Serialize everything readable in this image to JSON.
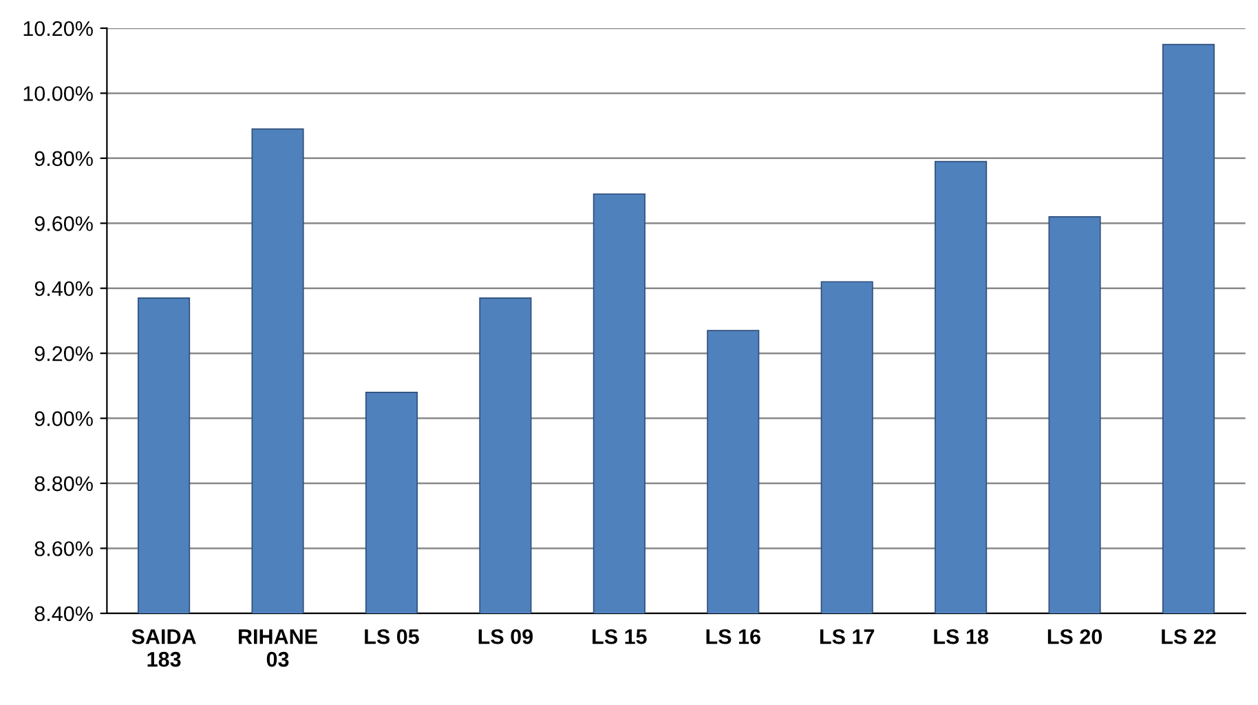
{
  "chart_data": {
    "type": "bar",
    "categories": [
      "SAIDA\n183",
      "RIHANE\n03",
      "LS 05",
      "LS 09",
      "LS 15",
      "LS 16",
      "LS 17",
      "LS 18",
      "LS 20",
      "LS 22"
    ],
    "values": [
      9.37,
      9.89,
      9.08,
      9.37,
      9.69,
      9.27,
      9.42,
      9.79,
      9.62,
      10.15
    ],
    "color": "#4f81bd",
    "ylim": [
      8.4,
      10.2
    ],
    "yticks": [
      {
        "value": 8.4,
        "label": "8.40%"
      },
      {
        "value": 8.6,
        "label": "8.60%"
      },
      {
        "value": 8.8,
        "label": "8.80%"
      },
      {
        "value": 9.0,
        "label": "9.00%"
      },
      {
        "value": 9.2,
        "label": "9.20%"
      },
      {
        "value": 9.4,
        "label": "9.40%"
      },
      {
        "value": 9.6,
        "label": "9.60%"
      },
      {
        "value": 9.8,
        "label": "9.80%"
      },
      {
        "value": 10.0,
        "label": "10.00%"
      },
      {
        "value": 10.2,
        "label": "10.20%"
      }
    ],
    "grid": "y"
  }
}
